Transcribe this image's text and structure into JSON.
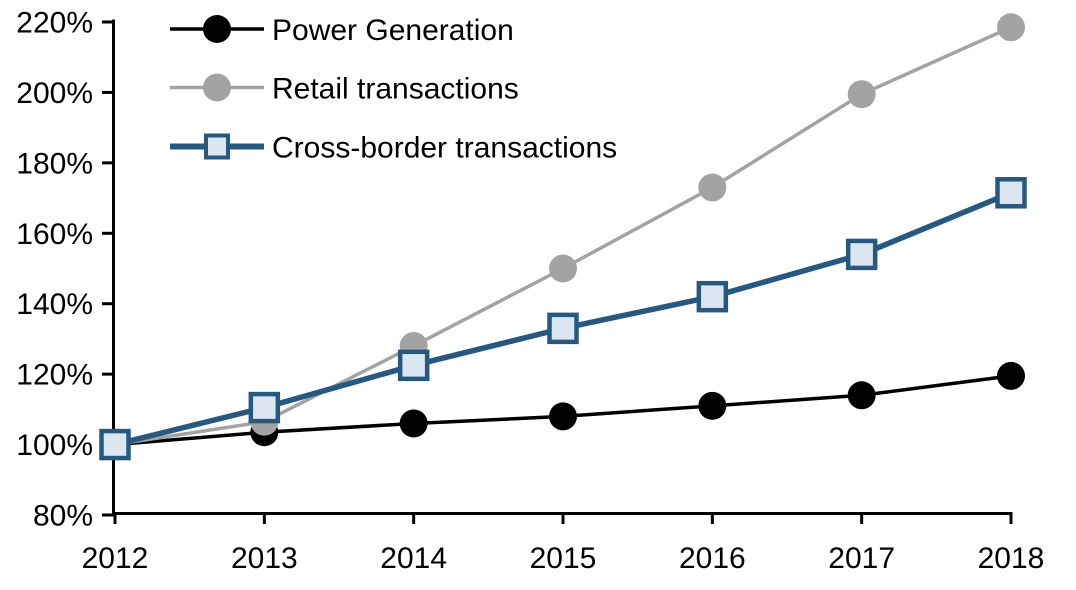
{
  "chart_data": {
    "type": "line",
    "title": "",
    "xlabel": "",
    "ylabel": "",
    "x": [
      2012,
      2013,
      2014,
      2015,
      2016,
      2017,
      2018
    ],
    "x_tick_labels": [
      "2012",
      "2013",
      "2014",
      "2015",
      "2016",
      "2017",
      "2018"
    ],
    "y_tick_labels": [
      "80%",
      "100%",
      "120%",
      "140%",
      "160%",
      "180%",
      "200%",
      "220%"
    ],
    "y_tick_values": [
      80,
      100,
      120,
      140,
      160,
      180,
      200,
      220
    ],
    "ylim": [
      80,
      220
    ],
    "grid": false,
    "legend_position": "top-left-inside",
    "series": [
      {
        "name": "Power Generation",
        "slug": "power-generation",
        "color": "#000000",
        "marker": "circle",
        "marker_fill": "#000000",
        "line_width": 3.5,
        "values": [
          100,
          103.5,
          106,
          108,
          111,
          114,
          119.5
        ]
      },
      {
        "name": "Retail transactions",
        "slug": "retail-transactions",
        "color": "#A3A3A3",
        "marker": "circle",
        "marker_fill": "#A3A3A3",
        "line_width": 3.5,
        "values": [
          100,
          106.5,
          128,
          150,
          173,
          199.5,
          218.5
        ]
      },
      {
        "name": "Cross-border transactions",
        "slug": "cross-border-transactions",
        "color": "#27587F",
        "marker": "square",
        "marker_fill": "#DCE6F1",
        "line_width": 5.5,
        "values": [
          100,
          110.5,
          122.5,
          133,
          142,
          154,
          171.5
        ]
      }
    ],
    "axis_color": "#000000"
  }
}
